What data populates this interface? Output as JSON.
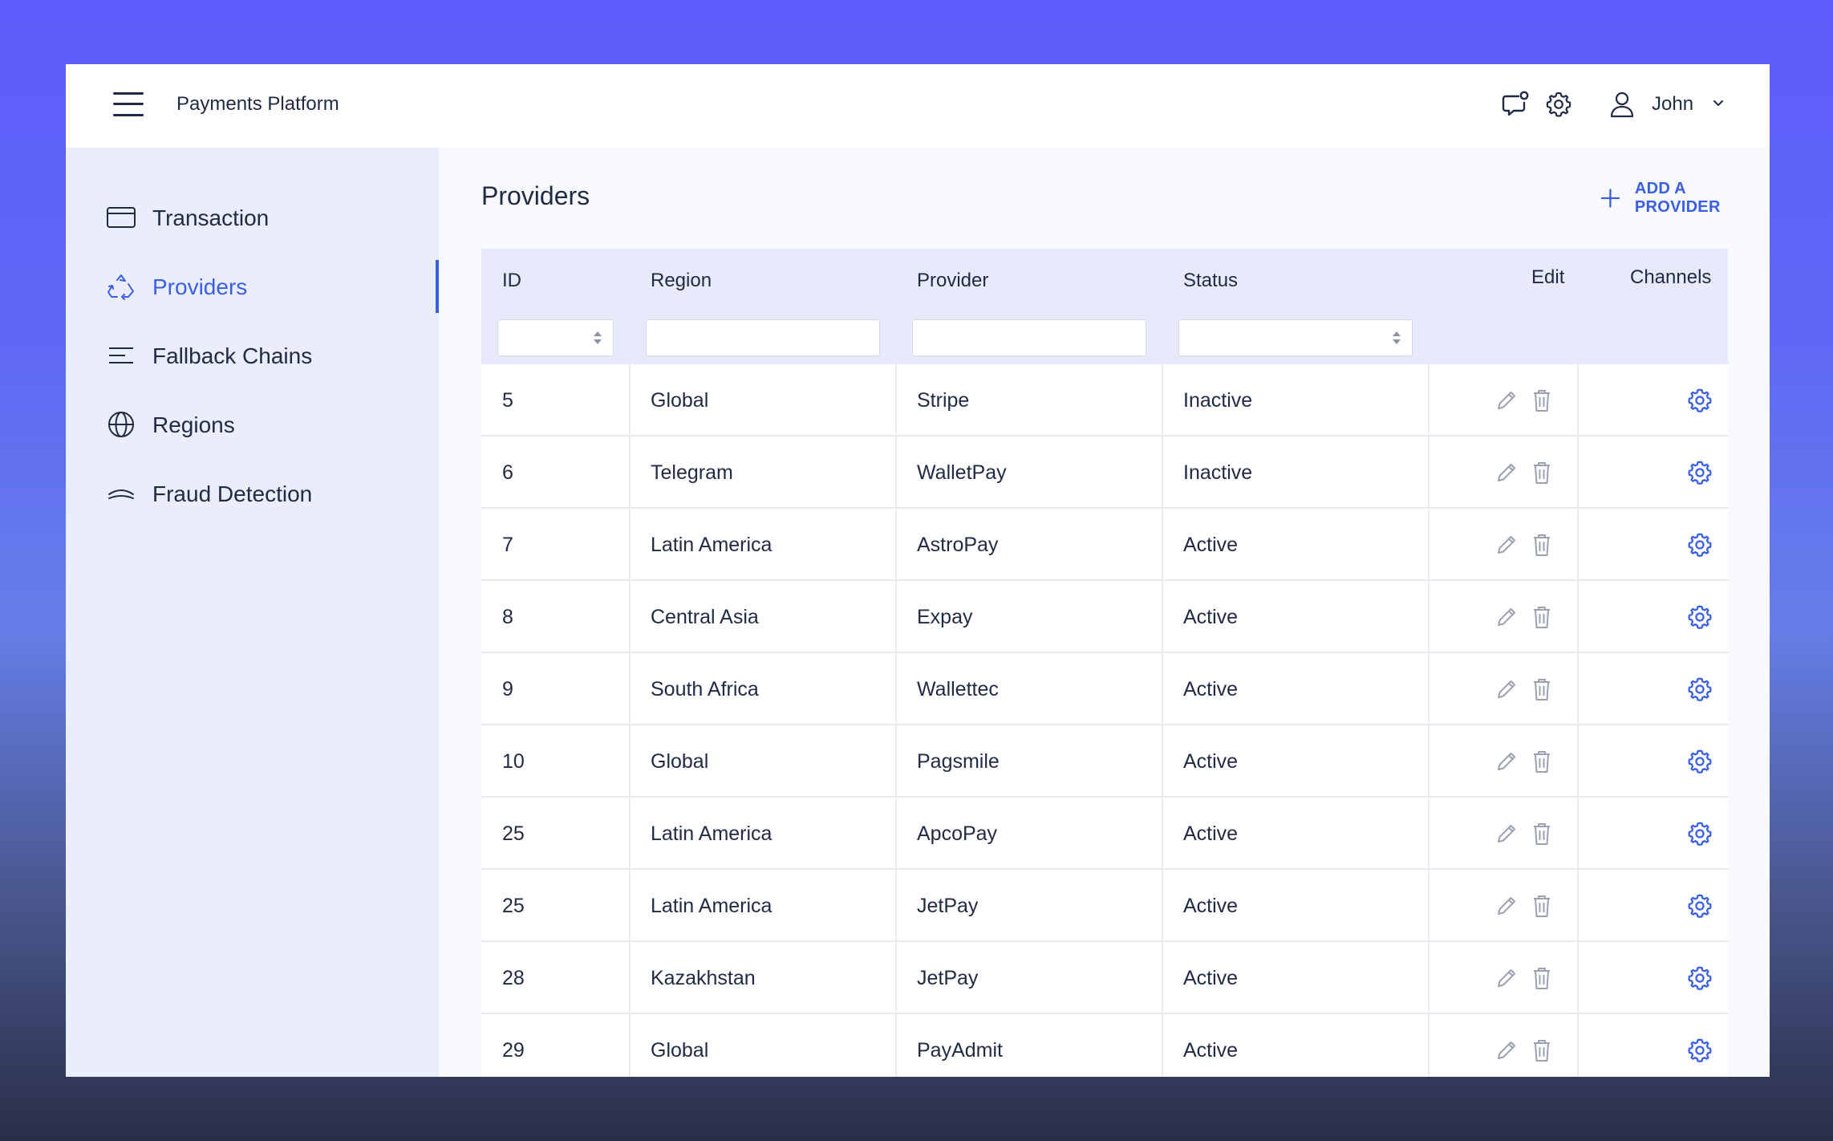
{
  "header": {
    "app_title": "Payments Platform",
    "user_name": "John",
    "icons": [
      "menu-icon",
      "chat-notification-icon",
      "settings-icon",
      "user-icon",
      "chevron-down-icon"
    ]
  },
  "sidebar": {
    "items": [
      {
        "label": "Transaction",
        "icon": "card-icon",
        "active": false
      },
      {
        "label": "Providers",
        "icon": "recycle-icon",
        "active": true
      },
      {
        "label": "Fallback Chains",
        "icon": "lines-icon",
        "active": false
      },
      {
        "label": "Regions",
        "icon": "globe-icon",
        "active": false
      },
      {
        "label": "Fraud Detection",
        "icon": "arc-icon",
        "active": false
      }
    ]
  },
  "main": {
    "title": "Providers",
    "add_button": "ADD A PROVIDER",
    "columns": {
      "id": "ID",
      "region": "Region",
      "provider": "Provider",
      "status": "Status",
      "edit": "Edit",
      "channels": "Channels"
    },
    "rows": [
      {
        "id": "5",
        "region": "Global",
        "provider": "Stripe",
        "status": "Inactive"
      },
      {
        "id": "6",
        "region": "Telegram",
        "provider": "WalletPay",
        "status": "Inactive"
      },
      {
        "id": "7",
        "region": "Latin America",
        "provider": "AstroPay",
        "status": "Active"
      },
      {
        "id": "8",
        "region": "Central Asia",
        "provider": "Expay",
        "status": "Active"
      },
      {
        "id": "9",
        "region": "South Africa",
        "provider": "Wallettec",
        "status": "Active"
      },
      {
        "id": "10",
        "region": "Global",
        "provider": "Pagsmile",
        "status": "Active"
      },
      {
        "id": "25",
        "region": "Latin America",
        "provider": "ApcoPay",
        "status": "Active"
      },
      {
        "id": "25",
        "region": "Latin America",
        "provider": "JetPay",
        "status": "Active"
      },
      {
        "id": "28",
        "region": "Kazakhstan",
        "provider": "JetPay",
        "status": "Active"
      },
      {
        "id": "29",
        "region": "Global",
        "provider": "PayAdmit",
        "status": "Active"
      }
    ]
  },
  "colors": {
    "accent": "#3a5ee6",
    "sidebar_bg": "#eaedfb",
    "header_row_bg": "#e6eafb",
    "text": "#1f2a44"
  }
}
